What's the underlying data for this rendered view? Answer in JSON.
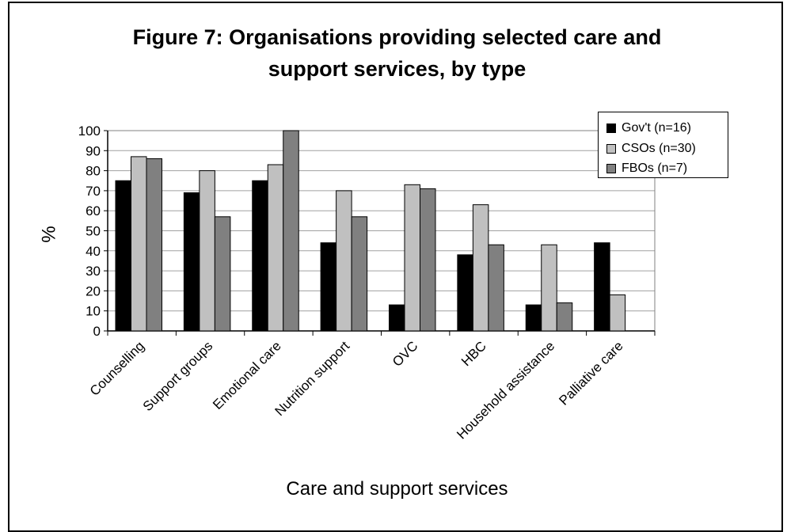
{
  "chart_data": {
    "type": "bar",
    "title_lines": [
      "Figure 7: Organisations providing selected care and",
      "support services, by type"
    ],
    "xlabel": "Care and support services",
    "ylabel": "%",
    "ylim": [
      0,
      100
    ],
    "yticks": [
      0,
      10,
      20,
      30,
      40,
      50,
      60,
      70,
      80,
      90,
      100
    ],
    "grid": true,
    "legend_position": "top-right",
    "categories": [
      "Counselling",
      "Support groups",
      "Emotional care",
      "Nutrition support",
      "OVC",
      "HBC",
      "Household assistance",
      "Palliative care"
    ],
    "series": [
      {
        "name": "Gov't (n=16)",
        "color": "#000000",
        "values": [
          75,
          69,
          75,
          44,
          13,
          38,
          13,
          44
        ]
      },
      {
        "name": "CSOs (n=30)",
        "color": "#c0c0c0",
        "values": [
          87,
          80,
          83,
          70,
          73,
          63,
          43,
          18
        ]
      },
      {
        "name": "FBOs (n=7)",
        "color": "#808080",
        "values": [
          86,
          57,
          100,
          57,
          71,
          43,
          14,
          0
        ]
      }
    ]
  }
}
